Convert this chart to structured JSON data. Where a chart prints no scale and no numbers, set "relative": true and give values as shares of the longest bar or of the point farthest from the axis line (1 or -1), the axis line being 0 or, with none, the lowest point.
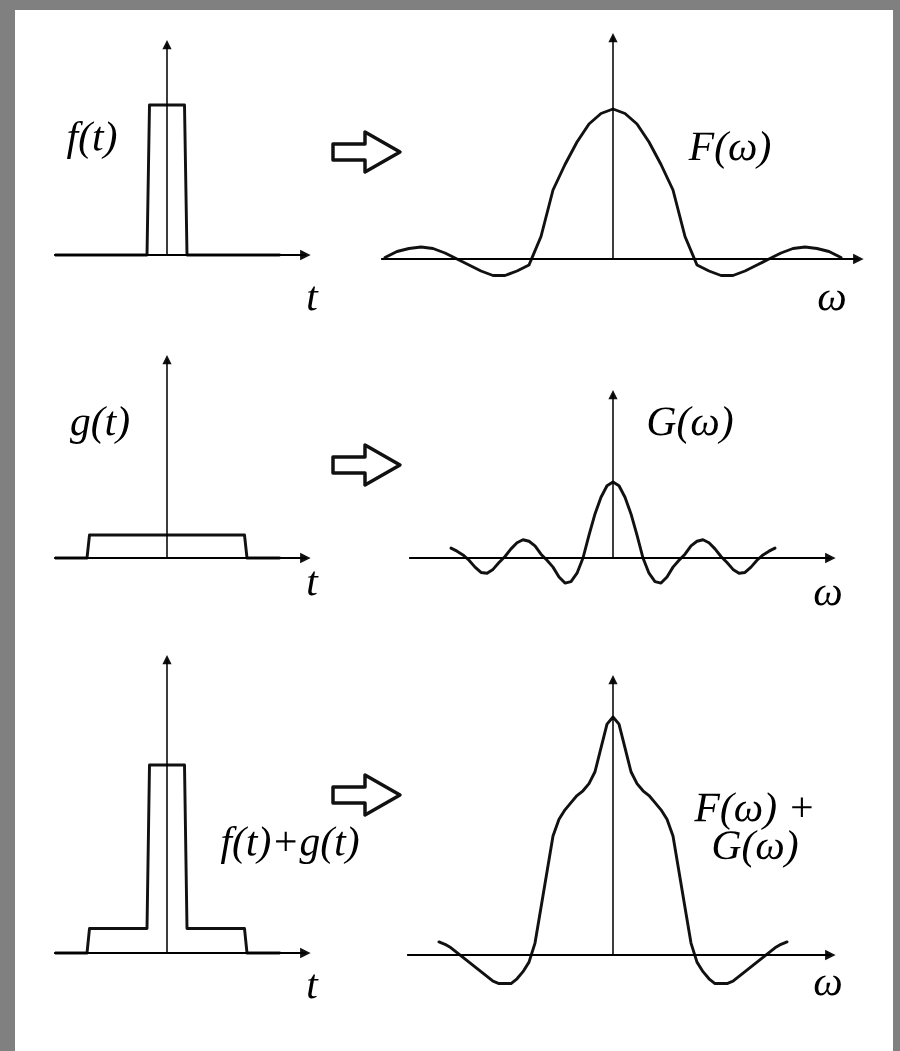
{
  "chart_data": [
    {
      "type": "line",
      "relative": true,
      "xlabel": "t",
      "ylabel": "f(t)",
      "categories": [
        null,
        null,
        null,
        null,
        null,
        null,
        null,
        null,
        null,
        null,
        null,
        null,
        null,
        null,
        null,
        null,
        null,
        null,
        null,
        null,
        null,
        null,
        null,
        null,
        null,
        null,
        null,
        null,
        null,
        null,
        null,
        null,
        null,
        null,
        null,
        null,
        null,
        null,
        null,
        null,
        null,
        null,
        null,
        null,
        null,
        null,
        null,
        null,
        null,
        null,
        null,
        null,
        null,
        null,
        null,
        null,
        null,
        null,
        null,
        null,
        null,
        null,
        null,
        null,
        null,
        null,
        null,
        null,
        null,
        null,
        null,
        null,
        null,
        null,
        null,
        null,
        null,
        null,
        null,
        null,
        null,
        null,
        null,
        null,
        null,
        null,
        null,
        null,
        null,
        null,
        null
      ],
      "series": [
        {
          "color": "#111111",
          "values": [
            0,
            0,
            0,
            0,
            0,
            0,
            0,
            0,
            0,
            0,
            0,
            0,
            0,
            0,
            0,
            0,
            0,
            0,
            0,
            0,
            0,
            0,
            0,
            0,
            0,
            0,
            0,
            0,
            0,
            0,
            0,
            0,
            0,
            0,
            0,
            0,
            0,
            0,
            1,
            1,
            1,
            1,
            1,
            1,
            1,
            1,
            1,
            1,
            1,
            1,
            1,
            1,
            1,
            0,
            0,
            0,
            0,
            0,
            0,
            0,
            0,
            0,
            0,
            0,
            0,
            0,
            0,
            0,
            0,
            0,
            0,
            0,
            0,
            0,
            0,
            0,
            0,
            0,
            0,
            0,
            0,
            0,
            0,
            0,
            0,
            0,
            0,
            0,
            0,
            0,
            0
          ]
        }
      ]
    },
    {
      "type": "line",
      "relative": true,
      "xlabel": "ω",
      "ylabel": "F(ω)",
      "categories": [
        null,
        null,
        null,
        null,
        null,
        null,
        null,
        null,
        null,
        null,
        null,
        null,
        null,
        null,
        null,
        null,
        null,
        null,
        null,
        null,
        null,
        null,
        null,
        null,
        null,
        null,
        null,
        null,
        null,
        null,
        null,
        null,
        null,
        null,
        null,
        null,
        null,
        null,
        null
      ],
      "series": [
        {
          "color": "#111111",
          "values": [
            0.01,
            0.05,
            0.07,
            0.08,
            0.07,
            0.04,
            0.0,
            -0.04,
            -0.08,
            -0.11,
            -0.11,
            -0.08,
            -0.04,
            0.15,
            0.46,
            0.63,
            0.78,
            0.9,
            0.97,
            1,
            0.97,
            0.9,
            0.78,
            0.63,
            0.46,
            0.15,
            -0.04,
            -0.08,
            -0.11,
            -0.11,
            -0.08,
            -0.04,
            0.0,
            0.04,
            0.07,
            0.08,
            0.07,
            0.05,
            0.01
          ]
        }
      ]
    },
    {
      "type": "line",
      "relative": true,
      "xlabel": "t",
      "ylabel": "g(t)",
      "categories": [
        null,
        null,
        null,
        null,
        null,
        null,
        null,
        null,
        null,
        null,
        null,
        null,
        null,
        null,
        null,
        null,
        null,
        null,
        null,
        null,
        null,
        null,
        null,
        null,
        null,
        null,
        null,
        null,
        null,
        null,
        null,
        null,
        null,
        null,
        null,
        null,
        null,
        null,
        null,
        null,
        null,
        null,
        null,
        null,
        null,
        null,
        null,
        null,
        null,
        null,
        null,
        null,
        null,
        null,
        null,
        null,
        null,
        null,
        null,
        null,
        null,
        null,
        null,
        null,
        null,
        null,
        null,
        null,
        null,
        null,
        null,
        null,
        null,
        null,
        null,
        null,
        null,
        null,
        null,
        null,
        null,
        null,
        null,
        null,
        null,
        null,
        null,
        null,
        null,
        null,
        null
      ],
      "series": [
        {
          "color": "#111111",
          "values": [
            0,
            0,
            0,
            0,
            0,
            0,
            0,
            0,
            0,
            0,
            0,
            0,
            0,
            0,
            1,
            1,
            1,
            1,
            1,
            1,
            1,
            1,
            1,
            1,
            1,
            1,
            1,
            1,
            1,
            1,
            1,
            1,
            1,
            1,
            1,
            1,
            1,
            1,
            1,
            1,
            1,
            1,
            1,
            1,
            1,
            1,
            1,
            1,
            1,
            1,
            1,
            1,
            1,
            1,
            1,
            1,
            1,
            1,
            1,
            1,
            1,
            1,
            1,
            1,
            1,
            1,
            1,
            1,
            1,
            1,
            1,
            1,
            1,
            1,
            1,
            1,
            1,
            0,
            0,
            0,
            0,
            0,
            0,
            0,
            0,
            0,
            0,
            0,
            0,
            0,
            0
          ]
        }
      ]
    },
    {
      "type": "line",
      "relative": true,
      "xlabel": "ω",
      "ylabel": "G(ω)",
      "categories": [
        null,
        null,
        null,
        null,
        null,
        null,
        null,
        null,
        null,
        null,
        null,
        null,
        null,
        null,
        null,
        null,
        null,
        null,
        null,
        null,
        null,
        null,
        null,
        null,
        null,
        null,
        null,
        null,
        null,
        null,
        null,
        null,
        null,
        null,
        null,
        null,
        null,
        null,
        null,
        null,
        null,
        null,
        null,
        null,
        null,
        null,
        null,
        null,
        null,
        null,
        null,
        null,
        null,
        null,
        null
      ],
      "series": [
        {
          "color": "#111111",
          "values": [
            0.13,
            0.09,
            0.04,
            -0.03,
            -0.12,
            -0.19,
            -0.2,
            -0.15,
            -0.06,
            0.02,
            0.12,
            0.2,
            0.24,
            0.22,
            0.16,
            0.05,
            -0.03,
            -0.12,
            -0.25,
            -0.33,
            -0.31,
            -0.2,
            0.0,
            0.3,
            0.58,
            0.8,
            0.95,
            1,
            0.95,
            0.8,
            0.58,
            0.3,
            0.0,
            -0.2,
            -0.31,
            -0.33,
            -0.25,
            -0.12,
            -0.03,
            0.05,
            0.16,
            0.22,
            0.24,
            0.2,
            0.12,
            0.02,
            -0.06,
            -0.15,
            -0.2,
            -0.19,
            -0.12,
            -0.03,
            0.04,
            0.09,
            0.13
          ]
        }
      ]
    },
    {
      "type": "line",
      "relative": true,
      "xlabel": "t",
      "ylabel": "f(t)+g(t)",
      "categories": [
        null,
        null,
        null,
        null,
        null,
        null,
        null,
        null,
        null,
        null,
        null,
        null,
        null,
        null,
        null,
        null,
        null,
        null,
        null,
        null,
        null,
        null,
        null,
        null,
        null,
        null,
        null,
        null,
        null,
        null,
        null,
        null,
        null,
        null,
        null,
        null,
        null,
        null,
        null,
        null,
        null,
        null,
        null,
        null,
        null,
        null,
        null,
        null,
        null,
        null,
        null,
        null,
        null,
        null,
        null,
        null,
        null,
        null,
        null,
        null,
        null,
        null,
        null,
        null,
        null,
        null,
        null,
        null,
        null,
        null,
        null,
        null,
        null,
        null,
        null,
        null,
        null,
        null,
        null,
        null,
        null,
        null,
        null,
        null,
        null,
        null,
        null,
        null,
        null,
        null,
        null
      ],
      "series": [
        {
          "color": "#111111",
          "values": [
            0,
            0,
            0,
            0,
            0,
            0,
            0,
            0,
            0,
            0,
            0,
            0,
            0,
            0,
            0.13,
            0.13,
            0.13,
            0.13,
            0.13,
            0.13,
            0.13,
            0.13,
            0.13,
            0.13,
            0.13,
            0.13,
            0.13,
            0.13,
            0.13,
            0.13,
            0.13,
            0.13,
            0.13,
            0.13,
            0.13,
            0.13,
            0.13,
            0.13,
            1,
            1,
            1,
            1,
            1,
            1,
            1,
            1,
            1,
            1,
            1,
            1,
            1,
            1,
            1,
            0.13,
            0.13,
            0.13,
            0.13,
            0.13,
            0.13,
            0.13,
            0.13,
            0.13,
            0.13,
            0.13,
            0.13,
            0.13,
            0.13,
            0.13,
            0.13,
            0.13,
            0.13,
            0.13,
            0.13,
            0.13,
            0.13,
            0.13,
            0.13,
            0,
            0,
            0,
            0,
            0,
            0,
            0,
            0,
            0,
            0,
            0,
            0,
            0,
            0
          ]
        }
      ]
    },
    {
      "type": "line",
      "relative": true,
      "xlabel": "ω",
      "ylabel": "F(ω) +\nG(ω)",
      "categories": [
        null,
        null,
        null,
        null,
        null,
        null,
        null,
        null,
        null,
        null,
        null,
        null,
        null,
        null,
        null,
        null,
        null,
        null,
        null,
        null,
        null,
        null,
        null,
        null,
        null,
        null,
        null,
        null,
        null,
        null,
        null,
        null,
        null,
        null,
        null,
        null,
        null,
        null,
        null,
        null,
        null,
        null,
        null,
        null,
        null,
        null,
        null,
        null,
        null,
        null,
        null,
        null,
        null,
        null,
        null,
        null,
        null,
        null,
        null
      ],
      "series": [
        {
          "color": "#111111",
          "values": [
            0.055,
            0.045,
            0.03,
            0.01,
            -0.01,
            -0.03,
            -0.05,
            -0.07,
            -0.09,
            -0.11,
            -0.12,
            -0.12,
            -0.12,
            -0.1,
            -0.07,
            -0.03,
            0.05,
            0.2,
            0.35,
            0.5,
            0.57,
            0.61,
            0.64,
            0.67,
            0.69,
            0.72,
            0.77,
            0.87,
            0.97,
            1,
            0.97,
            0.87,
            0.77,
            0.72,
            0.69,
            0.67,
            0.64,
            0.61,
            0.57,
            0.5,
            0.35,
            0.2,
            0.05,
            -0.03,
            -0.07,
            -0.1,
            -0.12,
            -0.12,
            -0.12,
            -0.11,
            -0.09,
            -0.07,
            -0.05,
            -0.03,
            -0.01,
            0.01,
            0.03,
            0.045,
            0.055
          ]
        }
      ]
    }
  ]
}
